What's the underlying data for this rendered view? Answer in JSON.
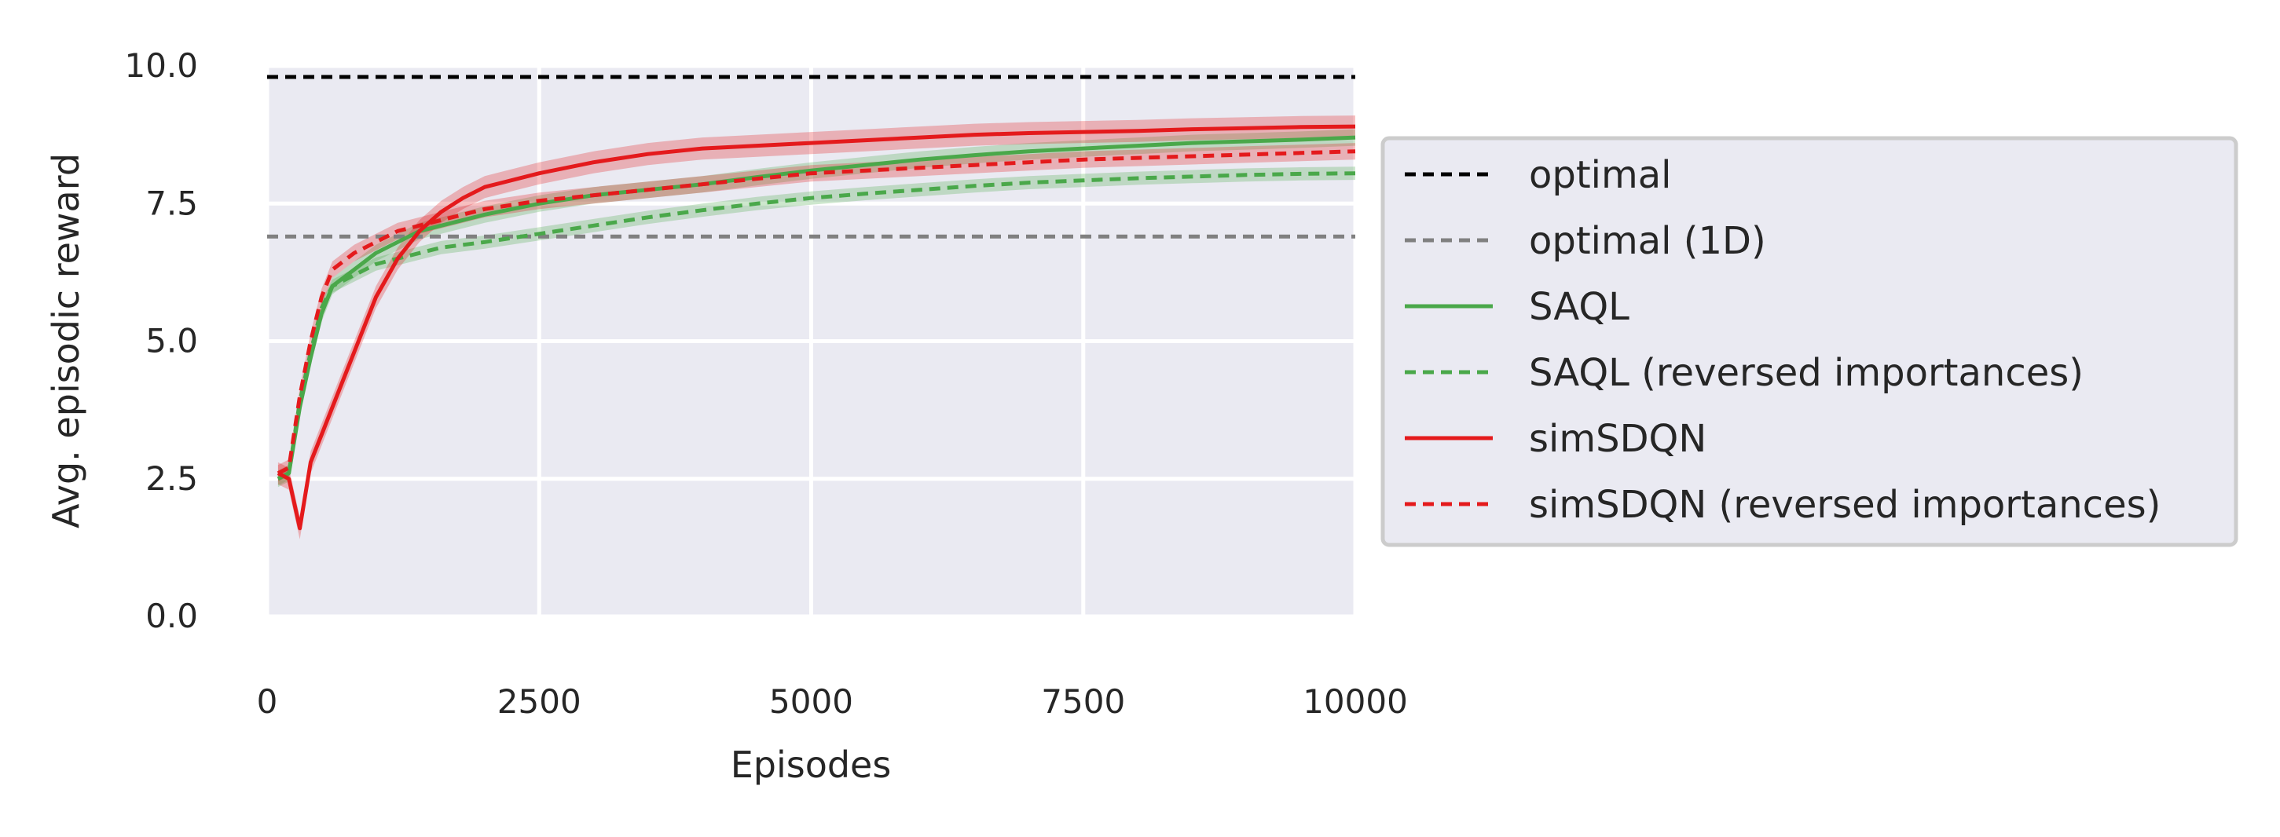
{
  "chart_data": {
    "type": "line",
    "xlabel": "Episodes",
    "ylabel": "Avg. episodic reward",
    "xlim": [
      0,
      10000
    ],
    "ylim": [
      0,
      10
    ],
    "xticks": [
      0,
      2500,
      5000,
      7500,
      10000
    ],
    "xtick_labels": [
      "0",
      "2500",
      "5000",
      "7500",
      "10000"
    ],
    "yticks": [
      0,
      2.5,
      5,
      7.5,
      10
    ],
    "ytick_labels": [
      "0.0",
      "2.5",
      "5.0",
      "7.5",
      "10.0"
    ],
    "grid": true,
    "background": "#eaeaf2",
    "legend_position": "right, outside plot",
    "series": [
      {
        "name": "optimal",
        "color": "#000000",
        "dash": "dashed",
        "x": [
          0,
          10000
        ],
        "y": [
          9.8,
          9.8
        ]
      },
      {
        "name": "optimal (1D)",
        "color": "#808080",
        "dash": "dashed",
        "x": [
          0,
          10000
        ],
        "y": [
          6.9,
          6.9
        ]
      },
      {
        "name": "SAQL",
        "color": "#4aa84a",
        "dash": "solid",
        "band": 0.15,
        "x": [
          100,
          200,
          300,
          400,
          500,
          600,
          800,
          1000,
          1200,
          1400,
          1600,
          2000,
          2500,
          3000,
          3500,
          4000,
          4500,
          5000,
          5500,
          6000,
          6500,
          7000,
          7500,
          8000,
          8500,
          9000,
          9500,
          10000
        ],
        "y": [
          2.5,
          2.6,
          3.8,
          4.7,
          5.5,
          6.0,
          6.3,
          6.6,
          6.8,
          7.0,
          7.1,
          7.3,
          7.5,
          7.65,
          7.75,
          7.85,
          7.98,
          8.1,
          8.2,
          8.3,
          8.38,
          8.45,
          8.5,
          8.55,
          8.6,
          8.63,
          8.66,
          8.7
        ]
      },
      {
        "name": "SAQL (reversed importances)",
        "color": "#4aa84a",
        "dash": "dashed",
        "band": 0.12,
        "x": [
          100,
          200,
          300,
          400,
          500,
          600,
          800,
          1000,
          1200,
          1400,
          1600,
          2000,
          2500,
          3000,
          3500,
          4000,
          4500,
          5000,
          5500,
          6000,
          6500,
          7000,
          7500,
          8000,
          8500,
          9000,
          9500,
          10000
        ],
        "y": [
          2.5,
          2.6,
          3.9,
          4.8,
          5.6,
          6.0,
          6.2,
          6.4,
          6.5,
          6.6,
          6.7,
          6.8,
          6.95,
          7.1,
          7.25,
          7.38,
          7.5,
          7.6,
          7.68,
          7.75,
          7.82,
          7.88,
          7.92,
          7.96,
          7.99,
          8.02,
          8.04,
          8.05
        ]
      },
      {
        "name": "simSDQN",
        "color": "#e41a1c",
        "dash": "solid",
        "band": 0.2,
        "x": [
          100,
          200,
          300,
          400,
          500,
          600,
          700,
          800,
          900,
          1000,
          1200,
          1400,
          1600,
          1800,
          2000,
          2500,
          3000,
          3500,
          4000,
          4500,
          5000,
          5500,
          6000,
          6500,
          7000,
          7500,
          8000,
          8500,
          9000,
          9500,
          10000
        ],
        "y": [
          2.6,
          2.5,
          1.6,
          2.8,
          3.3,
          3.8,
          4.3,
          4.8,
          5.3,
          5.8,
          6.5,
          7.0,
          7.35,
          7.6,
          7.8,
          8.05,
          8.25,
          8.4,
          8.5,
          8.55,
          8.6,
          8.65,
          8.7,
          8.75,
          8.78,
          8.8,
          8.82,
          8.85,
          8.87,
          8.89,
          8.9
        ]
      },
      {
        "name": "simSDQN (reversed importances)",
        "color": "#e41a1c",
        "dash": "dashed",
        "band": 0.15,
        "x": [
          100,
          200,
          300,
          400,
          500,
          600,
          800,
          1000,
          1200,
          1400,
          1600,
          2000,
          2500,
          3000,
          3500,
          4000,
          4500,
          5000,
          5500,
          6000,
          6500,
          7000,
          7500,
          8000,
          8500,
          9000,
          9500,
          10000
        ],
        "y": [
          2.6,
          2.7,
          4.0,
          5.0,
          5.8,
          6.3,
          6.6,
          6.8,
          7.0,
          7.1,
          7.2,
          7.4,
          7.55,
          7.65,
          7.75,
          7.85,
          7.95,
          8.05,
          8.1,
          8.15,
          8.2,
          8.25,
          8.3,
          8.33,
          8.36,
          8.39,
          8.42,
          8.45
        ]
      }
    ]
  }
}
